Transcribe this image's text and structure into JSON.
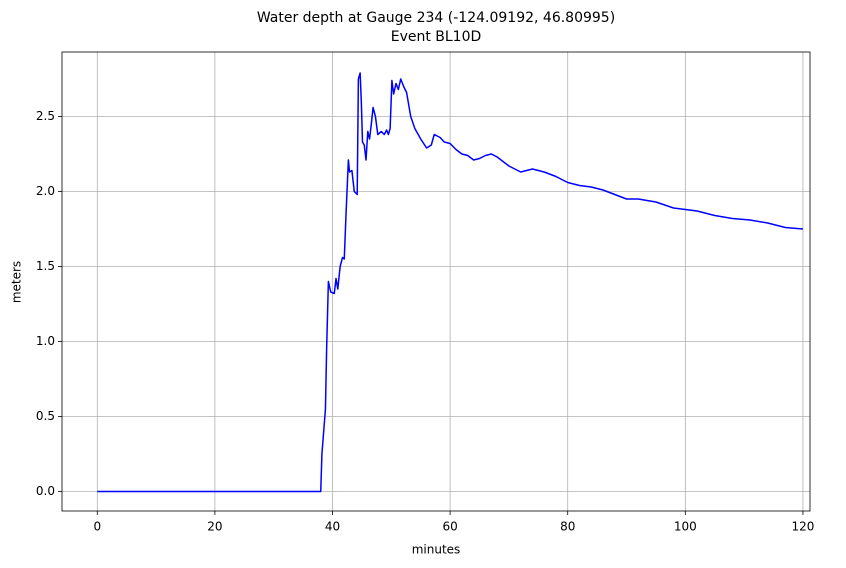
{
  "chart_data": {
    "type": "line",
    "title": "Water depth at Gauge 234 (-124.09192, 46.80995)",
    "subtitle": "Event BL10D",
    "xlabel": "minutes",
    "ylabel": "meters",
    "xlim": [
      -6,
      121.2
    ],
    "xticks": [
      0,
      20,
      40,
      60,
      80,
      100,
      120
    ],
    "ylim": [
      -0.13,
      2.93
    ],
    "yticks": [
      {
        "value": 0,
        "label": "0.0"
      },
      {
        "value": 0.5,
        "label": "0.5"
      },
      {
        "value": 1,
        "label": "1.0"
      },
      {
        "value": 1.5,
        "label": "1.5"
      },
      {
        "value": 2,
        "label": "2.0"
      },
      {
        "value": 2.5,
        "label": "2.5"
      }
    ],
    "grid": true,
    "series": [
      {
        "color": "#0000ff",
        "x": [
          0,
          38,
          38.2,
          38.6,
          38.8,
          39,
          39.3,
          39.7,
          40.3,
          40.6,
          40.9,
          41.3,
          41.7,
          42,
          42.3,
          42.7,
          42.9,
          43.3,
          43.7,
          44.2,
          44.4,
          44.7,
          44.9,
          45.1,
          45.4,
          45.7,
          46,
          46.3,
          46.6,
          46.9,
          47.3,
          47.7,
          48.3,
          48.8,
          49.2,
          49.5,
          49.8,
          50.1,
          50.4,
          50.8,
          51.2,
          51.6,
          52.1,
          52.6,
          53.3,
          54,
          55,
          56,
          56.8,
          57.3,
          57.8,
          58.3,
          59,
          60,
          61,
          62,
          63,
          64,
          65,
          66,
          67,
          68,
          70,
          72,
          74,
          76,
          78,
          80,
          82,
          84,
          86,
          88,
          90,
          92,
          95,
          98,
          100,
          102,
          105,
          108,
          111,
          114,
          117,
          120
        ],
        "values": [
          0,
          0,
          0.25,
          0.45,
          0.55,
          0.95,
          1.4,
          1.33,
          1.32,
          1.42,
          1.35,
          1.5,
          1.56,
          1.55,
          1.85,
          2.21,
          2.13,
          2.14,
          2.0,
          1.98,
          2.75,
          2.79,
          2.6,
          2.33,
          2.31,
          2.21,
          2.4,
          2.35,
          2.45,
          2.56,
          2.5,
          2.38,
          2.4,
          2.38,
          2.41,
          2.38,
          2.42,
          2.74,
          2.65,
          2.72,
          2.68,
          2.75,
          2.7,
          2.66,
          2.5,
          2.42,
          2.35,
          2.29,
          2.31,
          2.38,
          2.37,
          2.36,
          2.33,
          2.32,
          2.28,
          2.25,
          2.24,
          2.21,
          2.22,
          2.24,
          2.25,
          2.23,
          2.17,
          2.13,
          2.15,
          2.13,
          2.1,
          2.06,
          2.04,
          2.03,
          2.01,
          1.98,
          1.95,
          1.95,
          1.93,
          1.89,
          1.88,
          1.87,
          1.84,
          1.82,
          1.81,
          1.79,
          1.76,
          1.75
        ]
      }
    ]
  }
}
